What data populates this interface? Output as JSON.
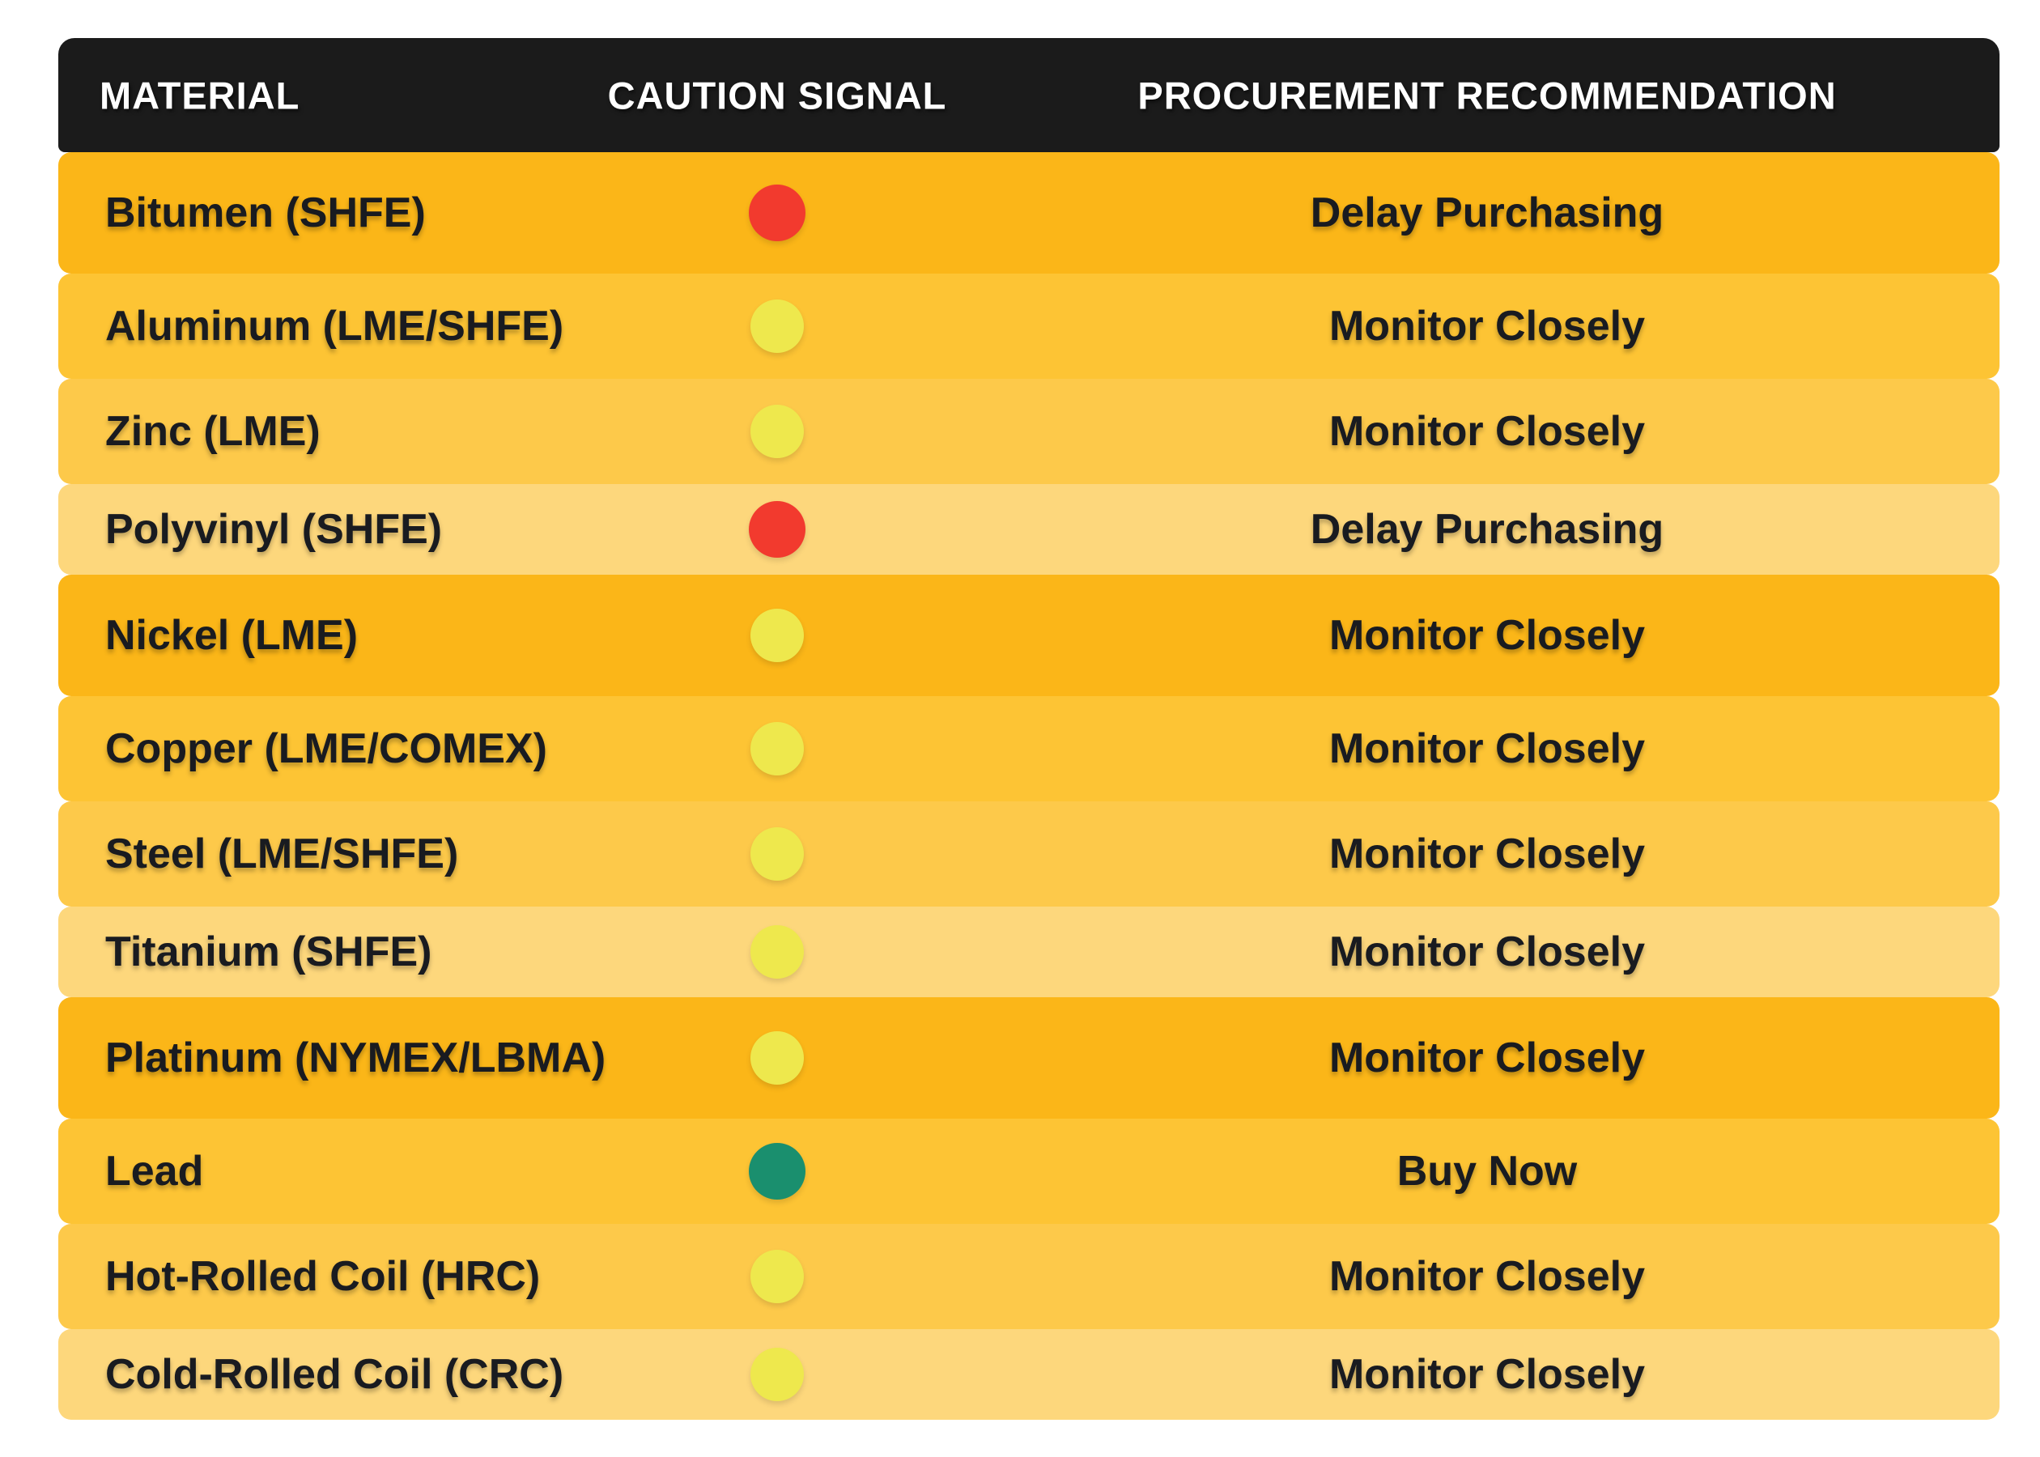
{
  "chart_data": {
    "type": "table",
    "title": "",
    "columns": [
      "MATERIAL",
      "CAUTION SIGNAL",
      "PROCUREMENT RECOMMENDATION"
    ],
    "rows": [
      {
        "material": "Bitumen (SHFE)",
        "signal": "red",
        "recommendation": "Delay Purchasing"
      },
      {
        "material": "Aluminum (LME/SHFE)",
        "signal": "yellow",
        "recommendation": "Monitor Closely"
      },
      {
        "material": "Zinc (LME)",
        "signal": "yellow",
        "recommendation": "Monitor Closely"
      },
      {
        "material": "Polyvinyl (SHFE)",
        "signal": "red",
        "recommendation": "Delay Purchasing"
      },
      {
        "material": "Nickel (LME)",
        "signal": "yellow",
        "recommendation": "Monitor Closely"
      },
      {
        "material": "Copper (LME/COMEX)",
        "signal": "yellow",
        "recommendation": "Monitor Closely"
      },
      {
        "material": "Steel (LME/SHFE)",
        "signal": "yellow",
        "recommendation": "Monitor Closely"
      },
      {
        "material": "Titanium (SHFE)",
        "signal": "yellow",
        "recommendation": "Monitor Closely"
      },
      {
        "material": "Platinum (NYMEX/LBMA)",
        "signal": "yellow",
        "recommendation": "Monitor Closely"
      },
      {
        "material": "Lead",
        "signal": "green",
        "recommendation": "Buy Now"
      },
      {
        "material": "Hot-Rolled Coil (HRC)",
        "signal": "yellow",
        "recommendation": "Monitor Closely"
      },
      {
        "material": "Cold-Rolled Coil (CRC)",
        "signal": "yellow",
        "recommendation": "Monitor Closely"
      }
    ],
    "legend_semantics": {
      "red": "Delay Purchasing",
      "yellow": "Monitor Closely",
      "green": "Buy Now"
    }
  },
  "table": {
    "headers": [
      {
        "label": "MATERIAL"
      },
      {
        "label": "CAUTION SIGNAL"
      },
      {
        "label": "PROCUREMENT RECOMMENDATION"
      }
    ],
    "rows": [
      {
        "material": "Bitumen (SHFE)",
        "signal": "red",
        "recommendation": "Delay Purchasing"
      },
      {
        "material": "Aluminum (LME/SHFE)",
        "signal": "yellow",
        "recommendation": "Monitor Closely"
      },
      {
        "material": "Zinc (LME)",
        "signal": "yellow",
        "recommendation": "Monitor Closely"
      },
      {
        "material": "Polyvinyl (SHFE)",
        "signal": "red",
        "recommendation": "Delay Purchasing"
      },
      {
        "material": "Nickel (LME)",
        "signal": "yellow",
        "recommendation": "Monitor Closely"
      },
      {
        "material": "Copper (LME/COMEX)",
        "signal": "yellow",
        "recommendation": "Monitor Closely"
      },
      {
        "material": "Steel (LME/SHFE)",
        "signal": "yellow",
        "recommendation": "Monitor Closely"
      },
      {
        "material": "Titanium (SHFE)",
        "signal": "yellow",
        "recommendation": "Monitor Closely"
      },
      {
        "material": "Platinum (NYMEX/LBMA)",
        "signal": "yellow",
        "recommendation": "Monitor Closely"
      },
      {
        "material": "Lead",
        "signal": "green",
        "recommendation": "Buy Now"
      },
      {
        "material": "Hot-Rolled Coil (HRC)",
        "signal": "yellow",
        "recommendation": "Monitor Closely"
      },
      {
        "material": "Cold-Rolled Coil (CRC)",
        "signal": "yellow",
        "recommendation": "Monitor Closely"
      }
    ],
    "signal_colors": {
      "red": "#F23A2E",
      "yellow": "#EEE84D",
      "green": "#1A8F6E"
    },
    "row_tint_cycle": [
      "#FBB618",
      "#FDC434",
      "#FDC94A",
      "#FDD77C"
    ],
    "header_bg": "#1B1B1B"
  }
}
